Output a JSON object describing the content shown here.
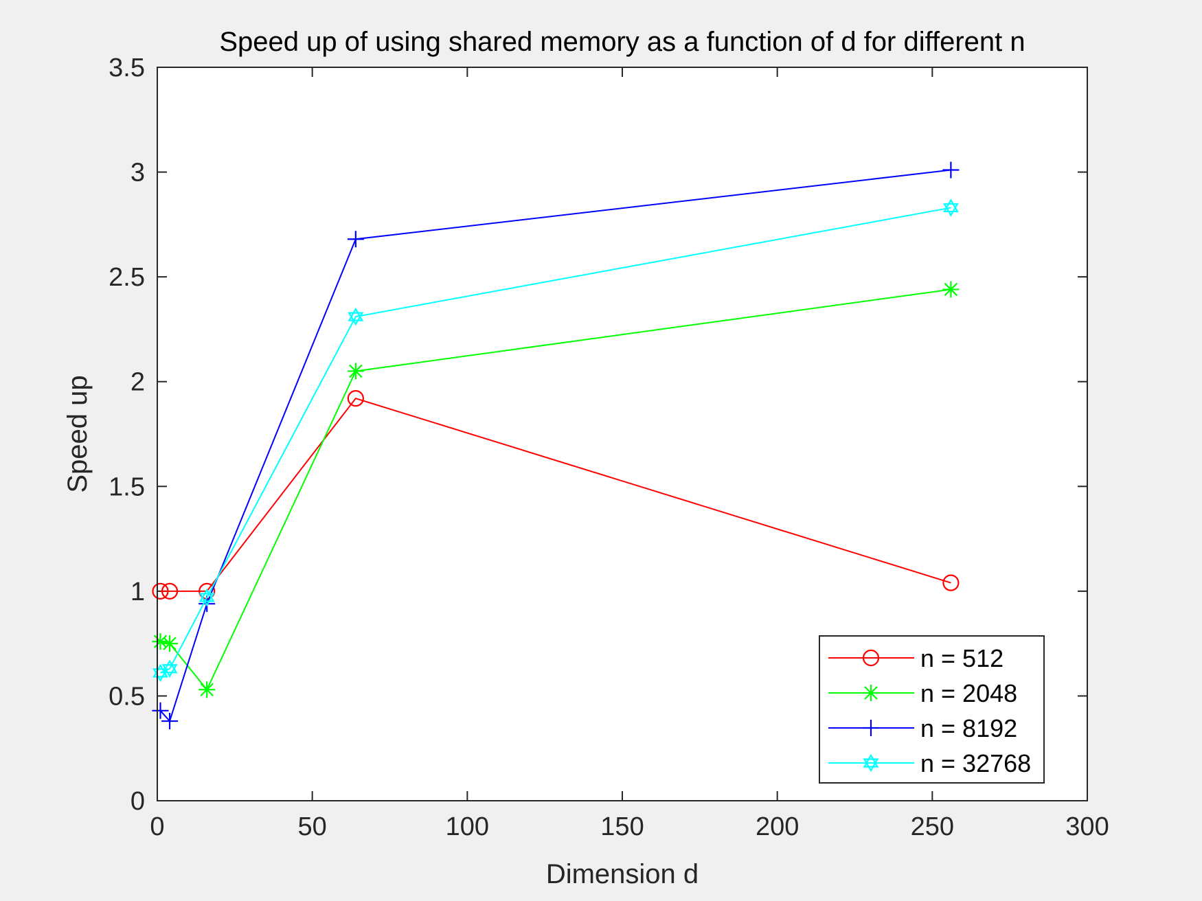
{
  "chart_data": {
    "type": "line",
    "title": "Speed up of using shared memory as a function of d for different n",
    "xlabel": "Dimension d",
    "ylabel": "Speed up",
    "xlim": [
      0,
      300
    ],
    "ylim": [
      0,
      3.5
    ],
    "xticks": [
      0,
      50,
      100,
      150,
      200,
      250,
      300
    ],
    "xtick_labels": [
      "0",
      "50",
      "100",
      "150",
      "200",
      "250",
      "300"
    ],
    "yticks": [
      0,
      0.5,
      1,
      1.5,
      2,
      2.5,
      3,
      3.5
    ],
    "ytick_labels": [
      "0",
      "0.5",
      "1",
      "1.5",
      "2",
      "2.5",
      "3",
      "3.5"
    ],
    "grid": false,
    "legend_position": "bottom-right",
    "x": [
      1,
      4,
      16,
      64,
      256
    ],
    "series": [
      {
        "name": "n = 512",
        "color": "#ff0000",
        "marker": "circle",
        "values": [
          1.0,
          1.0,
          1.0,
          1.92,
          1.04
        ]
      },
      {
        "name": "n = 2048",
        "color": "#00ff00",
        "marker": "asterisk",
        "values": [
          0.76,
          0.75,
          0.53,
          2.05,
          2.44
        ]
      },
      {
        "name": "n = 8192",
        "color": "#0000ff",
        "marker": "plus",
        "values": [
          0.43,
          0.38,
          0.94,
          2.68,
          3.01
        ]
      },
      {
        "name": "n = 32768",
        "color": "#00ffff",
        "marker": "hexagram",
        "values": [
          0.61,
          0.63,
          0.97,
          2.31,
          2.83
        ]
      }
    ]
  }
}
